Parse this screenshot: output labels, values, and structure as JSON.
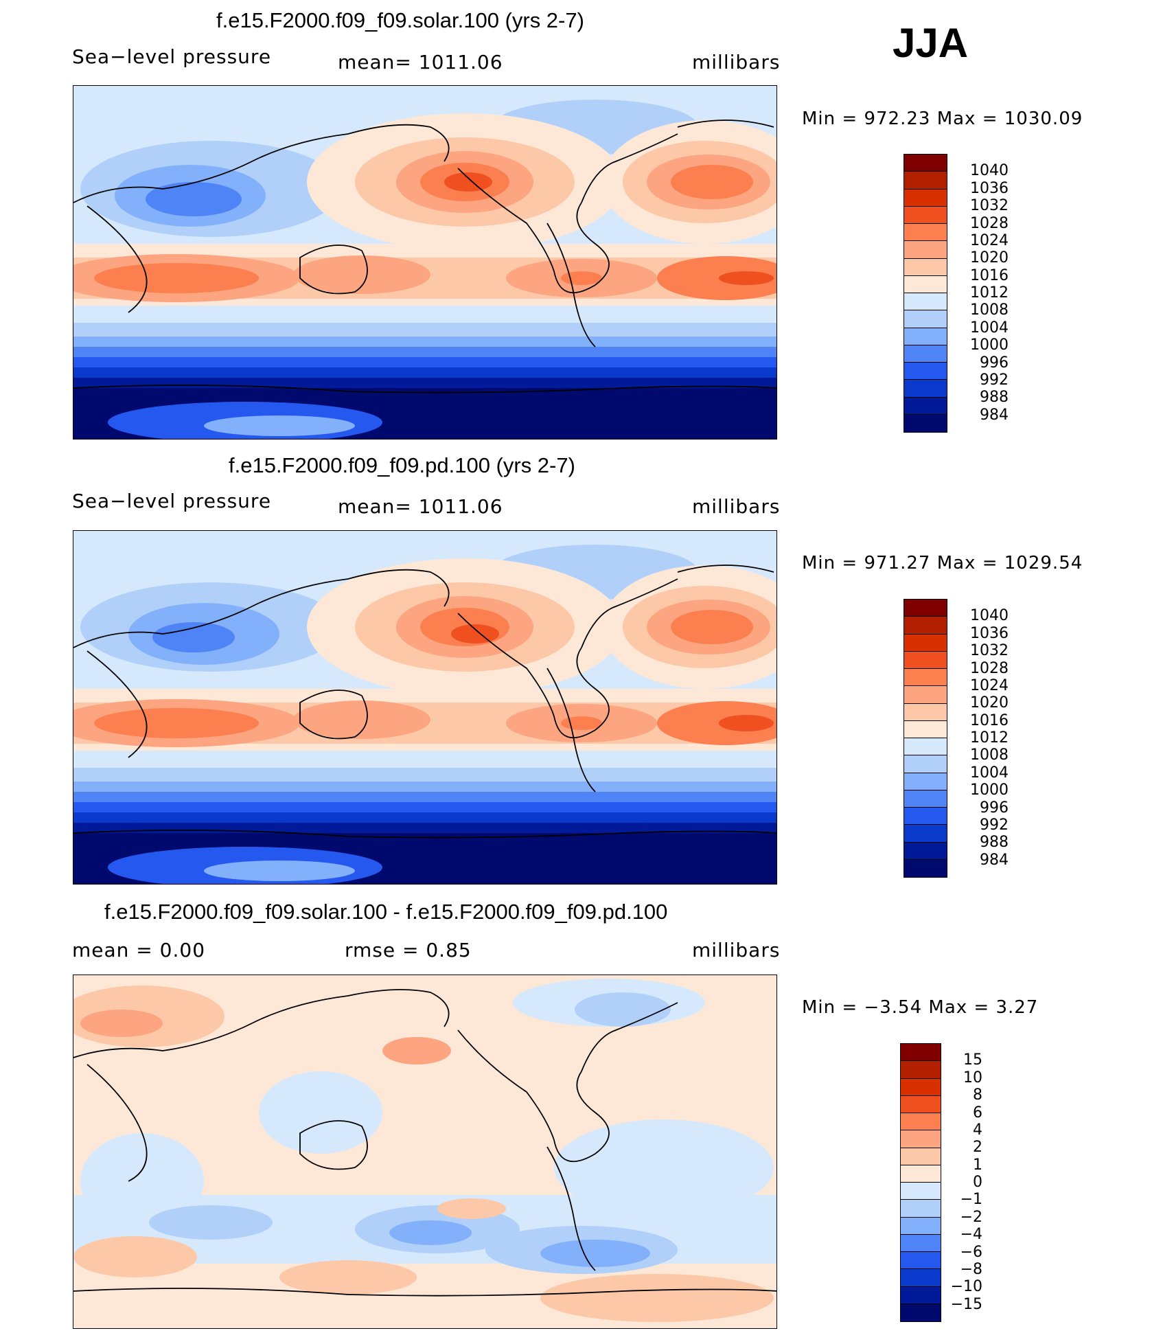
{
  "season": "JJA",
  "panels": [
    {
      "id": "solar",
      "title": "f.e15.F2000.f09_f09.solar.100 (yrs 2-7)",
      "left_label": "Sea−level pressure",
      "center_label": "mean=  1011.06",
      "right_label": "millibars",
      "minmax": "Min  =  972.23  Max  =  1030.09",
      "colorbar": {
        "levels": [
          "1040",
          "1036",
          "1032",
          "1028",
          "1024",
          "1020",
          "1016",
          "1012",
          "1008",
          "1004",
          "1000",
          "996",
          "992",
          "988",
          "984"
        ],
        "colors": [
          "#800000",
          "#b22000",
          "#d93000",
          "#f05020",
          "#fc7f4f",
          "#fca580",
          "#fcc8a8",
          "#fde8d8",
          "#d6e8fb",
          "#b0d0fa",
          "#82b0fa",
          "#4e84f6",
          "#2458ee",
          "#0a3acc",
          "#001a9a",
          "#000a6e"
        ]
      }
    },
    {
      "id": "pd",
      "title": "f.e15.F2000.f09_f09.pd.100 (yrs 2-7)",
      "left_label": "Sea−level pressure",
      "center_label": "mean=  1011.06",
      "right_label": "millibars",
      "minmax": "Min  =  971.27  Max  =  1029.54",
      "colorbar": {
        "levels": [
          "1040",
          "1036",
          "1032",
          "1028",
          "1024",
          "1020",
          "1016",
          "1012",
          "1008",
          "1004",
          "1000",
          "996",
          "992",
          "988",
          "984"
        ],
        "colors": [
          "#800000",
          "#b22000",
          "#d93000",
          "#f05020",
          "#fc7f4f",
          "#fca580",
          "#fcc8a8",
          "#fde8d8",
          "#d6e8fb",
          "#b0d0fa",
          "#82b0fa",
          "#4e84f6",
          "#2458ee",
          "#0a3acc",
          "#001a9a",
          "#000a6e"
        ]
      }
    },
    {
      "id": "diff",
      "title": "f.e15.F2000.f09_f09.solar.100 - f.e15.F2000.f09_f09.pd.100",
      "left_label": "mean  =      0.00",
      "center_label": "rmse  =      0.85",
      "right_label": "millibars",
      "minmax": "Min  =    −3.54  Max  =        3.27",
      "colorbar": {
        "levels": [
          "15",
          "10",
          "8",
          "6",
          "4",
          "2",
          "1",
          "0",
          "−1",
          "−2",
          "−4",
          "−6",
          "−8",
          "−10",
          "−15"
        ],
        "colors": [
          "#800000",
          "#b22000",
          "#d93000",
          "#f05020",
          "#fc7f4f",
          "#fca580",
          "#fcc8a8",
          "#fde8d8",
          "#d6e8fb",
          "#b0d0fa",
          "#82b0fa",
          "#4e84f6",
          "#2458ee",
          "#0a3acc",
          "#001a9a",
          "#000a6e"
        ]
      }
    }
  ]
}
